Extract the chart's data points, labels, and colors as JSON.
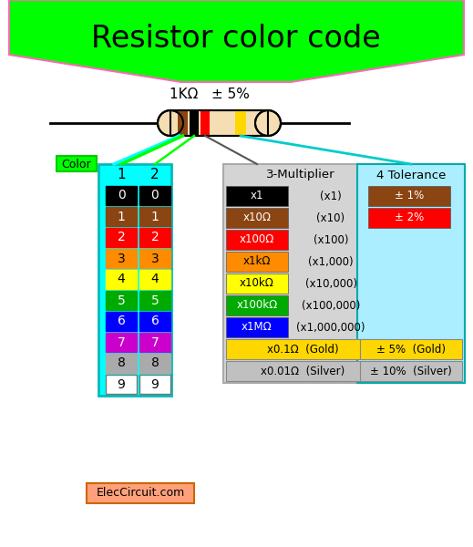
{
  "title": "Resistor color code",
  "title_bg": "#00ff00",
  "title_border": "#ff69b4",
  "resistor_label": "1KΩ   ± 5%",
  "resistor_body_color": "#F5DEB3",
  "color_rows": [
    {
      "num": "0",
      "color": "#000000",
      "text_color": "#ffffff"
    },
    {
      "num": "1",
      "color": "#8B4513",
      "text_color": "#ffffff"
    },
    {
      "num": "2",
      "color": "#ff0000",
      "text_color": "#ffffff"
    },
    {
      "num": "3",
      "color": "#FF8C00",
      "text_color": "#000000"
    },
    {
      "num": "4",
      "color": "#ffff00",
      "text_color": "#000000"
    },
    {
      "num": "5",
      "color": "#00aa00",
      "text_color": "#ffffff"
    },
    {
      "num": "6",
      "color": "#0000ff",
      "text_color": "#ffffff"
    },
    {
      "num": "7",
      "color": "#cc00cc",
      "text_color": "#ffffff"
    },
    {
      "num": "8",
      "color": "#aaaaaa",
      "text_color": "#000000"
    },
    {
      "num": "9",
      "color": "#ffffff",
      "text_color": "#000000"
    }
  ],
  "multiplier_rows": [
    {
      "label": "x1",
      "color": "#000000",
      "text_color": "#ffffff",
      "note": "(x1)"
    },
    {
      "label": "x10Ω",
      "color": "#8B4513",
      "text_color": "#ffffff",
      "note": "(x10)"
    },
    {
      "label": "x100Ω",
      "color": "#ff0000",
      "text_color": "#ffffff",
      "note": "(x100)"
    },
    {
      "label": "x1kΩ",
      "color": "#FF8C00",
      "text_color": "#000000",
      "note": "(x1,000)"
    },
    {
      "label": "x10kΩ",
      "color": "#ffff00",
      "text_color": "#000000",
      "note": "(x10,000)"
    },
    {
      "label": "x100kΩ",
      "color": "#00aa00",
      "text_color": "#ffffff",
      "note": "(x100,000)"
    },
    {
      "label": "x1MΩ",
      "color": "#0000ff",
      "text_color": "#ffffff",
      "note": "(x1,000,000)"
    }
  ],
  "multiplier_extra": [
    {
      "label": "x0.1Ω  (Gold)",
      "color": "#FFD700",
      "text_color": "#000000"
    },
    {
      "label": "x0.01Ω  (Silver)",
      "color": "#C0C0C0",
      "text_color": "#000000"
    }
  ],
  "tolerance_rows": [
    {
      "label": "± 1%",
      "color": "#8B4513",
      "text_color": "#ffffff"
    },
    {
      "label": "± 2%",
      "color": "#ff0000",
      "text_color": "#ffffff"
    }
  ],
  "tolerance_extra": [
    {
      "label": "± 5%  (Gold)",
      "color": "#FFD700",
      "text_color": "#000000"
    },
    {
      "label": "± 10%  (Silver)",
      "color": "#C0C0C0",
      "text_color": "#000000"
    }
  ],
  "elec_label": "ElecCircuit.com",
  "elec_bg": "#FFA07A",
  "color_label": "Color",
  "color_label_bg": "#00ff00",
  "col1_label": "1",
  "col2_label": "2",
  "col3_label": "3-Multiplier",
  "col4_label": "4 Tolerance",
  "table_bg_cyan": "#00FFFF",
  "table_bg_light": "#aaeeff",
  "table_bg_gray": "#d4d4d4",
  "bg_color": "#ffffff"
}
